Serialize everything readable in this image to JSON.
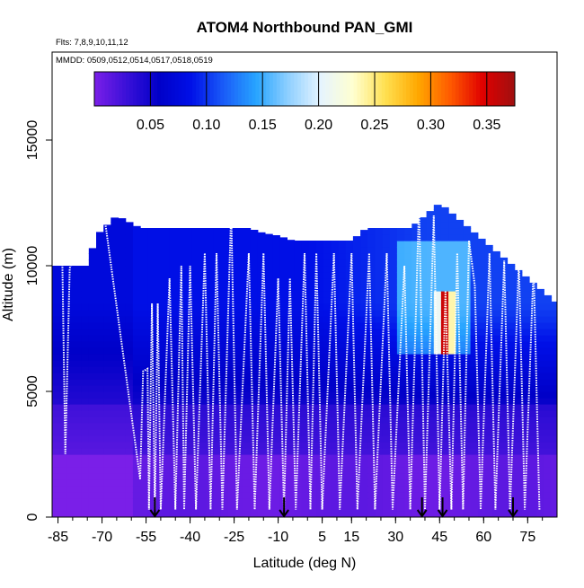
{
  "chart_data": {
    "type": "heatmap",
    "title": "ATOM4 Northbound PAN_GMI",
    "subtitle_flights": "Flts: 7,8,9,10,11,12",
    "subtitle_dates": "MMDD: 0509,0512,0514,0517,0518,0519",
    "xlabel": "Latitude (deg N)",
    "ylabel": "Altitude (m)",
    "xlim": [
      -87,
      85
    ],
    "ylim": [
      0,
      18500
    ],
    "x_ticks": [
      -85,
      -70,
      -55,
      -40,
      -25,
      -10,
      5,
      15,
      30,
      45,
      60,
      75
    ],
    "x_tick_labels": [
      "-85",
      "-70",
      "-55",
      "-40",
      "-25",
      "-10",
      "5",
      "15",
      "30",
      "45",
      "60",
      "75"
    ],
    "y_ticks": [
      0,
      5000,
      10000,
      15000
    ],
    "y_tick_labels": [
      "0",
      "5000",
      "10000",
      "15000"
    ],
    "colorbar": {
      "range": [
        0.0,
        0.375
      ],
      "ticks": [
        0.05,
        0.1,
        0.15,
        0.2,
        0.25,
        0.3,
        0.35
      ],
      "tick_labels": [
        "0.05",
        "0.10",
        "0.15",
        "0.20",
        "0.25",
        "0.30",
        "0.35"
      ],
      "colors": [
        "#7a1fe8",
        "#3a10d8",
        "#0000c8",
        "#0010e8",
        "#1a5cf8",
        "#27a4ff",
        "#8fd0ff",
        "#e6f4ff",
        "#ffffd0",
        "#ffe050",
        "#ffa800",
        "#ff5a00",
        "#e00000",
        "#a01010"
      ]
    },
    "field_description": "modeled PAN mixing ratio curtain",
    "bottom_profile_latitudes": [
      -87,
      -80,
      -75,
      -72,
      -65,
      -57,
      -50,
      -45,
      -40,
      -35,
      -30,
      -25,
      -20,
      -15,
      -10,
      -5,
      0,
      5,
      10,
      15,
      20,
      25,
      30,
      35,
      40,
      45,
      50,
      55,
      60,
      65,
      70,
      75,
      80,
      85
    ],
    "surface_top_altitude_m": [
      10000,
      10000,
      10000,
      11200,
      12000,
      11500,
      11500,
      11500,
      11500,
      11500,
      11500,
      11500,
      11500,
      11300,
      11200,
      11000,
      11000,
      11000,
      11000,
      11000,
      11500,
      11500,
      11500,
      11500,
      12000,
      12500,
      12000,
      11500,
      11000,
      10500,
      10000,
      9500,
      9000,
      8500
    ],
    "flight_track_vertices": [
      [
        -85.5,
        10100
      ],
      [
        -83.5,
        10100
      ],
      [
        -82.5,
        2500
      ],
      [
        -81,
        9900
      ],
      [
        -78,
        11000
      ],
      [
        -74,
        11500
      ],
      [
        -69,
        11800
      ],
      [
        -57,
        1500
      ],
      [
        -56,
        5800
      ],
      [
        -54.5,
        5900
      ],
      [
        -54,
        300
      ],
      [
        -53,
        8500
      ],
      [
        -52,
        300
      ],
      [
        -51,
        8500
      ],
      [
        -50,
        300
      ],
      [
        -47,
        9500
      ],
      [
        -45,
        300
      ],
      [
        -43,
        10000
      ],
      [
        -42,
        300
      ],
      [
        -40,
        10000
      ],
      [
        -38,
        300
      ],
      [
        -35,
        10500
      ],
      [
        -33,
        300
      ],
      [
        -31,
        10500
      ],
      [
        -29,
        300
      ],
      [
        -26,
        12200
      ],
      [
        -24,
        300
      ],
      [
        -20,
        10500
      ],
      [
        -18,
        300
      ],
      [
        -15,
        10500
      ],
      [
        -13,
        300
      ],
      [
        -10,
        9500
      ],
      [
        -8,
        300
      ],
      [
        -6,
        9500
      ],
      [
        -4,
        300
      ],
      [
        -1,
        10500
      ],
      [
        1,
        300
      ],
      [
        3,
        10500
      ],
      [
        5,
        300
      ],
      [
        9,
        10500
      ],
      [
        11,
        300
      ],
      [
        15,
        10500
      ],
      [
        17,
        300
      ],
      [
        21,
        10500
      ],
      [
        23,
        300
      ],
      [
        27,
        10500
      ],
      [
        29,
        300
      ],
      [
        33,
        10000
      ],
      [
        35,
        300
      ],
      [
        38,
        12500
      ],
      [
        40,
        300
      ],
      [
        43,
        12000
      ],
      [
        45,
        300
      ],
      [
        47,
        9000
      ],
      [
        49,
        300
      ],
      [
        51,
        10500
      ],
      [
        53,
        300
      ],
      [
        55,
        11000
      ],
      [
        57,
        9200
      ],
      [
        59,
        300
      ],
      [
        62,
        10500
      ],
      [
        64,
        300
      ],
      [
        67,
        10200
      ],
      [
        69,
        300
      ],
      [
        72,
        10200
      ],
      [
        74,
        300
      ],
      [
        77,
        10000
      ],
      [
        79,
        300
      ]
    ],
    "marker_arrow_latitudes": [
      -52,
      -8,
      39,
      46,
      70
    ],
    "hotspot": {
      "latitude_range": [
        44,
        50
      ],
      "altitude_range": [
        6500,
        9000
      ],
      "value": 0.35
    }
  }
}
